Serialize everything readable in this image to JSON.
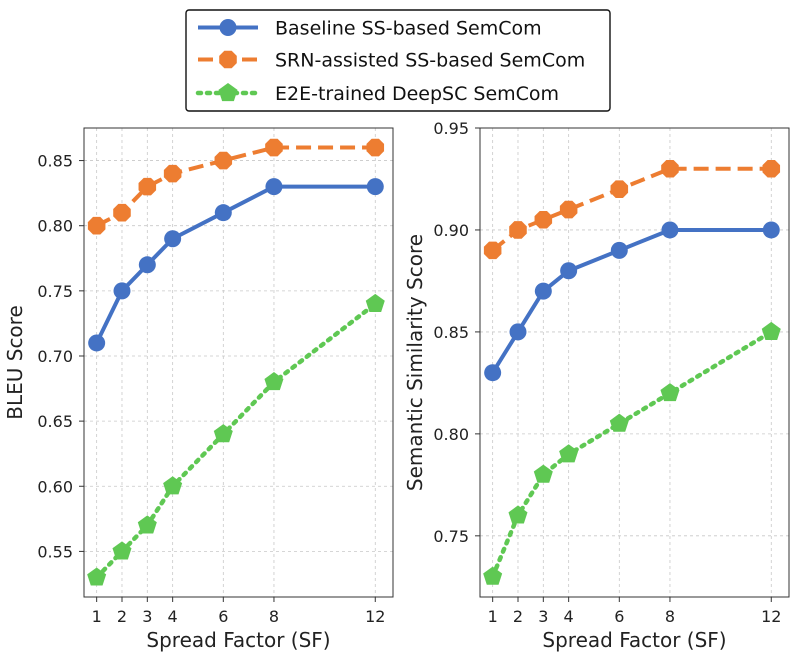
{
  "chart_data": [
    {
      "type": "line",
      "title": "",
      "xlabel": "Spread Factor (SF)",
      "ylabel": "BLEU Score",
      "x": [
        1,
        2,
        3,
        4,
        6,
        8,
        12
      ],
      "x_ticks": [
        "1",
        "2",
        "3",
        "4",
        "6",
        "8",
        "12"
      ],
      "ylim": [
        0.515,
        0.875
      ],
      "y_ticks": [
        "0.55",
        "0.60",
        "0.65",
        "0.70",
        "0.75",
        "0.80",
        "0.85"
      ],
      "y_tick_values": [
        0.55,
        0.6,
        0.65,
        0.7,
        0.75,
        0.8,
        0.85
      ],
      "grid": true,
      "series": [
        {
          "name": "Baseline SS-based SemCom",
          "values": [
            0.71,
            0.75,
            0.77,
            0.79,
            0.81,
            0.83,
            0.83
          ]
        },
        {
          "name": "SRN-assisted SS-based SemCom",
          "values": [
            0.8,
            0.81,
            0.83,
            0.84,
            0.85,
            0.86,
            0.86
          ]
        },
        {
          "name": "E2E-trained DeepSC SemCom",
          "values": [
            0.53,
            0.55,
            0.57,
            0.6,
            0.64,
            0.68,
            0.74
          ]
        }
      ]
    },
    {
      "type": "line",
      "title": "",
      "xlabel": "Spread Factor (SF)",
      "ylabel": "Semantic Similarity Score",
      "x": [
        1,
        2,
        3,
        4,
        6,
        8,
        12
      ],
      "x_ticks": [
        "1",
        "2",
        "3",
        "4",
        "6",
        "8",
        "12"
      ],
      "ylim": [
        0.72,
        0.95
      ],
      "y_ticks": [
        "0.75",
        "0.80",
        "0.85",
        "0.90",
        "0.95"
      ],
      "y_tick_values": [
        0.75,
        0.8,
        0.85,
        0.9,
        0.95
      ],
      "grid": true,
      "series": [
        {
          "name": "Baseline SS-based SemCom",
          "values": [
            0.83,
            0.85,
            0.87,
            0.88,
            0.89,
            0.9,
            0.9
          ]
        },
        {
          "name": "SRN-assisted SS-based SemCom",
          "values": [
            0.89,
            0.9,
            0.905,
            0.91,
            0.92,
            0.93,
            0.93
          ]
        },
        {
          "name": "E2E-trained DeepSC SemCom",
          "values": [
            0.73,
            0.76,
            0.78,
            0.79,
            0.805,
            0.82,
            0.85
          ]
        }
      ]
    }
  ],
  "legend": {
    "placement": "top-center",
    "entries": [
      {
        "label": "Baseline SS-based SemCom",
        "color": "#4472c4",
        "line": "solid",
        "marker": "circle"
      },
      {
        "label": "SRN-assisted SS-based SemCom",
        "color": "#ed7d31",
        "line": "dashed",
        "marker": "octagon"
      },
      {
        "label": "E2E-trained DeepSC SemCom",
        "color": "#5fc853",
        "line": "dotted",
        "marker": "pentagon"
      }
    ]
  },
  "series_colors": [
    "#4472c4",
    "#ed7d31",
    "#5fc853"
  ],
  "series_styles": [
    "solid",
    "dashed",
    "dotted"
  ],
  "series_markers": [
    "circle",
    "octagon",
    "pentagon"
  ]
}
